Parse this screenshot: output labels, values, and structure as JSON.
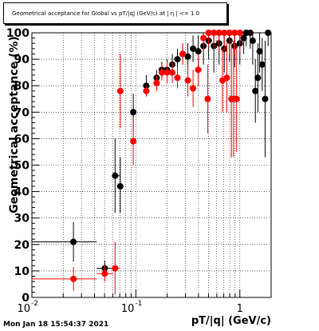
{
  "chart_data": {
    "type": "scatter",
    "title": "Geometrical acceptance for Global vs pT/|q| (GeV/c) at | η | <= 1.0",
    "xlabel": "pT/|q| (GeV/c)",
    "ylabel": "Geometrical acceptance (%)",
    "xscale": "log",
    "xlim": [
      0.01,
      2.0
    ],
    "ylim": [
      0,
      100
    ],
    "grid": true,
    "x_tick_labels": [
      "10",
      "-2",
      "10",
      "-1",
      "1"
    ],
    "y_tick_labels": [
      "0",
      "10",
      "20",
      "30",
      "40",
      "50",
      "60",
      "70",
      "80",
      "90",
      "100"
    ],
    "colors": {
      "series_1": "#000000",
      "series_2": "#ff0000"
    },
    "series": [
      {
        "color": "#000000",
        "points": [
          {
            "x": 0.0251,
            "y": 21.0,
            "xlo": 0.01,
            "xhi": 0.042,
            "ylo": 13.5,
            "yhi": 28.5
          },
          {
            "x": 0.0502,
            "y": 11.0,
            "xlo": 0.042,
            "xhi": 0.06,
            "ylo": 8.0,
            "yhi": 14.0
          },
          {
            "x": 0.0631,
            "y": 46.0,
            "xlo": 0.06,
            "xhi": 0.07,
            "ylo": 32.0,
            "yhi": 60.0
          },
          {
            "x": 0.0708,
            "y": 42.0,
            "xlo": 0.07,
            "xhi": 0.075,
            "ylo": 32.0,
            "yhi": 53.0
          },
          {
            "x": 0.0944,
            "y": 70.0,
            "xlo": 0.09,
            "xhi": 0.1,
            "ylo": 63.0,
            "yhi": 77.0
          },
          {
            "x": 0.1259,
            "y": 80.0,
            "xlo": 0.12,
            "xhi": 0.132,
            "ylo": 76.0,
            "yhi": 84.0
          },
          {
            "x": 0.1585,
            "y": 83.0,
            "xlo": 0.152,
            "xhi": 0.165,
            "ylo": 80.0,
            "yhi": 86.0
          },
          {
            "x": 0.1778,
            "y": 86.0,
            "xlo": 0.172,
            "xhi": 0.184,
            "ylo": 83.0,
            "yhi": 89.0
          },
          {
            "x": 0.1995,
            "y": 86.0,
            "xlo": 0.193,
            "xhi": 0.206,
            "ylo": 82.0,
            "yhi": 90.0
          },
          {
            "x": 0.2239,
            "y": 88.0,
            "xlo": 0.217,
            "xhi": 0.231,
            "ylo": 84.0,
            "yhi": 92.0
          },
          {
            "x": 0.2512,
            "y": 90.0,
            "xlo": 0.243,
            "xhi": 0.259,
            "ylo": 86.0,
            "yhi": 94.0
          },
          {
            "x": 0.2818,
            "y": 92.0,
            "xlo": 0.273,
            "xhi": 0.291,
            "ylo": 88.0,
            "yhi": 96.0
          },
          {
            "x": 0.3162,
            "y": 91.0,
            "xlo": 0.306,
            "xhi": 0.326,
            "ylo": 86.0,
            "yhi": 96.0
          },
          {
            "x": 0.3548,
            "y": 94.0,
            "xlo": 0.344,
            "xhi": 0.366,
            "ylo": 89.0,
            "yhi": 99.0
          },
          {
            "x": 0.3981,
            "y": 93.0,
            "xlo": 0.386,
            "xhi": 0.41,
            "ylo": 86.0,
            "yhi": 99.0
          },
          {
            "x": 0.4467,
            "y": 95.0,
            "xlo": 0.433,
            "xhi": 0.461,
            "ylo": 88.0,
            "yhi": 100.0
          },
          {
            "x": 0.5012,
            "y": 97.0,
            "xlo": 0.486,
            "xhi": 0.517,
            "ylo": 90.0,
            "yhi": 100.0
          },
          {
            "x": 0.5623,
            "y": 95.0,
            "xlo": 0.545,
            "xhi": 0.58,
            "ylo": 85.0,
            "yhi": 100.0
          },
          {
            "x": 0.631,
            "y": 96.0,
            "xlo": 0.612,
            "xhi": 0.65,
            "ylo": 88.0,
            "yhi": 100.0
          },
          {
            "x": 0.7079,
            "y": 94.0,
            "xlo": 0.687,
            "xhi": 0.729,
            "ylo": 85.0,
            "yhi": 100.0
          },
          {
            "x": 0.7943,
            "y": 97.0,
            "xlo": 0.77,
            "xhi": 0.819,
            "ylo": 89.0,
            "yhi": 100.0
          },
          {
            "x": 0.8913,
            "y": 95.0,
            "xlo": 0.865,
            "xhi": 0.918,
            "ylo": 87.0,
            "yhi": 100.0
          },
          {
            "x": 1.0,
            "y": 96.0,
            "xlo": 0.97,
            "xhi": 1.03,
            "ylo": 88.0,
            "yhi": 100.0
          },
          {
            "x": 1.09,
            "y": 98.0,
            "xlo": 1.055,
            "xhi": 1.125,
            "ylo": 92.0,
            "yhi": 100.0
          },
          {
            "x": 1.15,
            "y": 100.0,
            "xlo": 1.11,
            "xhi": 1.19,
            "ylo": 95.0,
            "yhi": 100.0
          },
          {
            "x": 1.26,
            "y": 100.0,
            "xlo": 1.22,
            "xhi": 1.3,
            "ylo": 94.0,
            "yhi": 100.0
          },
          {
            "x": 1.33,
            "y": 97.0,
            "xlo": 1.29,
            "xhi": 1.37,
            "ylo": 88.0,
            "yhi": 100.0
          },
          {
            "x": 1.41,
            "y": 78.0,
            "xlo": 1.37,
            "xhi": 1.45,
            "ylo": 66.0,
            "yhi": 90.0
          },
          {
            "x": 1.49,
            "y": 83.0,
            "xlo": 1.45,
            "xhi": 1.53,
            "ylo": 70.0,
            "yhi": 96.0
          },
          {
            "x": 1.55,
            "y": 93.0,
            "xlo": 1.51,
            "xhi": 1.59,
            "ylo": 85.0,
            "yhi": 100.0
          },
          {
            "x": 1.64,
            "y": 88.0,
            "xlo": 1.6,
            "xhi": 1.68,
            "ylo": 78.0,
            "yhi": 98.0
          },
          {
            "x": 1.75,
            "y": 75.0,
            "xlo": 1.7,
            "xhi": 1.8,
            "ylo": 53.0,
            "yhi": 97.0
          },
          {
            "x": 1.87,
            "y": 100.0,
            "xlo": 1.82,
            "xhi": 1.92,
            "ylo": 95.0,
            "yhi": 100.0
          }
        ]
      },
      {
        "color": "#ff0000",
        "points": [
          {
            "x": 0.0251,
            "y": 7.0,
            "xlo": 0.01,
            "xhi": 0.042,
            "ylo": 2.5,
            "yhi": 11.5
          },
          {
            "x": 0.0502,
            "y": 9.0,
            "xlo": 0.042,
            "xhi": 0.06,
            "ylo": 6.0,
            "yhi": 12.0
          },
          {
            "x": 0.0631,
            "y": 11.0,
            "xlo": 0.06,
            "xhi": 0.07,
            "ylo": 1.0,
            "yhi": 21.0
          },
          {
            "x": 0.0708,
            "y": 78.0,
            "xlo": 0.07,
            "xhi": 0.075,
            "ylo": 64.0,
            "yhi": 92.0
          },
          {
            "x": 0.0944,
            "y": 59.0,
            "xlo": 0.09,
            "xhi": 0.1,
            "ylo": 50.0,
            "yhi": 68.0
          },
          {
            "x": 0.1259,
            "y": 78.0,
            "xlo": 0.12,
            "xhi": 0.132,
            "ylo": 76.0,
            "yhi": 80.0
          },
          {
            "x": 0.1585,
            "y": 81.0,
            "xlo": 0.152,
            "xhi": 0.165,
            "ylo": 78.0,
            "yhi": 84.0
          },
          {
            "x": 0.1778,
            "y": 85.0,
            "xlo": 0.172,
            "xhi": 0.184,
            "ylo": 82.0,
            "yhi": 88.0
          },
          {
            "x": 0.1995,
            "y": 85.0,
            "xlo": 0.193,
            "xhi": 0.206,
            "ylo": 81.0,
            "yhi": 89.0
          },
          {
            "x": 0.2239,
            "y": 85.0,
            "xlo": 0.217,
            "xhi": 0.231,
            "ylo": 81.0,
            "yhi": 89.0
          },
          {
            "x": 0.2512,
            "y": 83.0,
            "xlo": 0.243,
            "xhi": 0.259,
            "ylo": 79.0,
            "yhi": 87.0
          },
          {
            "x": 0.2818,
            "y": 92.0,
            "xlo": 0.273,
            "xhi": 0.291,
            "ylo": 88.0,
            "yhi": 96.0
          },
          {
            "x": 0.3162,
            "y": 82.0,
            "xlo": 0.306,
            "xhi": 0.326,
            "ylo": 76.0,
            "yhi": 88.0
          },
          {
            "x": 0.3548,
            "y": 79.0,
            "xlo": 0.344,
            "xhi": 0.366,
            "ylo": 72.0,
            "yhi": 86.0
          },
          {
            "x": 0.3981,
            "y": 86.0,
            "xlo": 0.386,
            "xhi": 0.41,
            "ylo": 80.0,
            "yhi": 92.0
          },
          {
            "x": 0.4467,
            "y": 98.0,
            "xlo": 0.433,
            "xhi": 0.461,
            "ylo": 93.0,
            "yhi": 100.0
          },
          {
            "x": 0.49,
            "y": 75.0,
            "xlo": 0.475,
            "xhi": 0.505,
            "ylo": 62.0,
            "yhi": 88.0
          },
          {
            "x": 0.5012,
            "y": 100.0,
            "xlo": 0.486,
            "xhi": 0.517,
            "ylo": 95.0,
            "yhi": 100.0
          },
          {
            "x": 0.5623,
            "y": 100.0,
            "xlo": 0.545,
            "xhi": 0.58,
            "ylo": 94.0,
            "yhi": 100.0
          },
          {
            "x": 0.631,
            "y": 100.0,
            "xlo": 0.612,
            "xhi": 0.65,
            "ylo": 93.0,
            "yhi": 100.0
          },
          {
            "x": 0.68,
            "y": 82.0,
            "xlo": 0.66,
            "xhi": 0.7,
            "ylo": 70.0,
            "yhi": 94.0
          },
          {
            "x": 0.7079,
            "y": 100.0,
            "xlo": 0.687,
            "xhi": 0.729,
            "ylo": 93.0,
            "yhi": 100.0
          },
          {
            "x": 0.75,
            "y": 83.0,
            "xlo": 0.73,
            "xhi": 0.77,
            "ylo": 70.0,
            "yhi": 96.0
          },
          {
            "x": 0.7943,
            "y": 100.0,
            "xlo": 0.77,
            "xhi": 0.819,
            "ylo": 92.0,
            "yhi": 100.0
          },
          {
            "x": 0.83,
            "y": 75.0,
            "xlo": 0.805,
            "xhi": 0.855,
            "ylo": 53.0,
            "yhi": 97.0
          },
          {
            "x": 0.87,
            "y": 75.0,
            "xlo": 0.845,
            "xhi": 0.895,
            "ylo": 53.0,
            "yhi": 97.0
          },
          {
            "x": 0.8913,
            "y": 100.0,
            "xlo": 0.865,
            "xhi": 0.918,
            "ylo": 92.0,
            "yhi": 100.0
          },
          {
            "x": 0.93,
            "y": 75.0,
            "xlo": 0.905,
            "xhi": 0.955,
            "ylo": 55.0,
            "yhi": 95.0
          },
          {
            "x": 1.0,
            "y": 100.0,
            "xlo": 0.97,
            "xhi": 1.03,
            "ylo": 92.0,
            "yhi": 100.0
          }
        ]
      }
    ]
  },
  "timestamp": "Mon Jan 18 15:54:37 2021"
}
